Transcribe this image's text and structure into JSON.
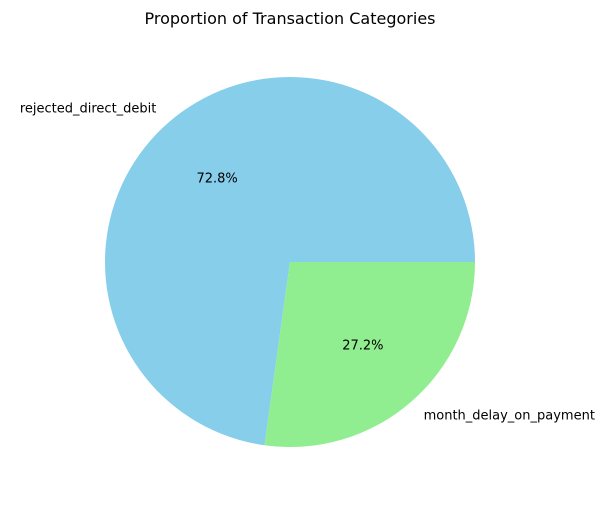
{
  "chart_data": {
    "type": "pie",
    "title": "Proportion of Transaction Categories",
    "categories": [
      "rejected_direct_debit",
      "month_delay_on_payment"
    ],
    "values": [
      72.8,
      27.2
    ],
    "percent_labels": [
      "72.8%",
      "27.2%"
    ],
    "colors": [
      "#87CEEB",
      "#90EE90"
    ],
    "start_angle_deg": 0,
    "direction": "counterclockwise",
    "legend": "none"
  }
}
